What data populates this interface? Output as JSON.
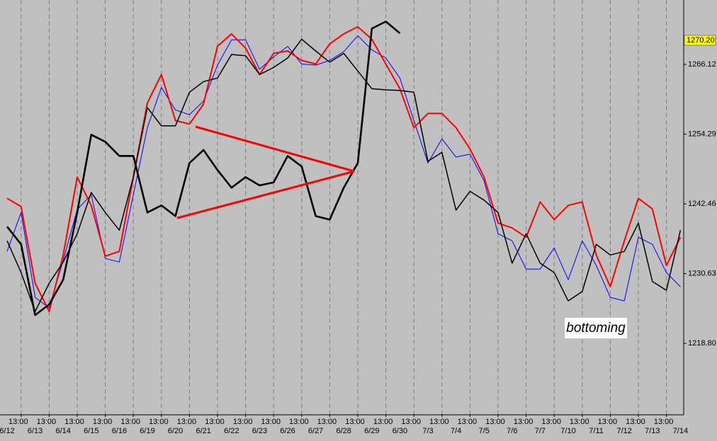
{
  "chart_data": {
    "type": "line",
    "x": [
      0,
      0.5,
      1,
      1.5,
      2,
      2.5,
      3,
      3.5,
      4,
      4.5,
      5,
      5.5,
      6,
      6.5,
      7,
      7.5,
      8,
      8.5,
      9,
      9.5,
      10,
      10.5,
      11,
      11.5,
      12,
      12.5,
      13,
      13.5,
      14,
      14.5,
      15,
      15.5,
      16,
      16.5,
      17,
      17.5,
      18,
      18.5,
      19,
      19.5,
      20,
      20.5,
      21,
      21.5,
      22,
      22.5,
      23,
      23.5,
      24
    ],
    "series": [
      {
        "color": "#0000ff",
        "width": 1,
        "values": [
          1234.4,
          1241.0,
          1226.6,
          1224.8,
          1232.9,
          1241.5,
          1244.0,
          1233.2,
          1232.6,
          1244.0,
          1255.4,
          1262.2,
          1258.4,
          1257.6,
          1259.9,
          1266.0,
          1270.3,
          1270.3,
          1265.3,
          1267.4,
          1269.2,
          1266.2,
          1266.0,
          1266.8,
          1268.3,
          1271.0,
          1268.6,
          1267.2,
          1263.8,
          1256.6,
          1249.4,
          1253.5,
          1250.4,
          1250.9,
          1246.4,
          1237.4,
          1236.2,
          1231.4,
          1231.4,
          1235.0,
          1229.6,
          1236.2,
          1232.0,
          1226.6,
          1226.0,
          1236.8,
          1235.6,
          1230.8,
          1228.4
        ]
      },
      {
        "color": "#ff0000",
        "width": 2,
        "values": [
          1243.4,
          1242.0,
          1229.0,
          1224.2,
          1233.8,
          1247.0,
          1242.2,
          1233.6,
          1234.4,
          1247.0,
          1259.6,
          1264.4,
          1256.6,
          1256.0,
          1259.4,
          1269.2,
          1271.3,
          1268.9,
          1264.4,
          1268.0,
          1268.4,
          1266.8,
          1266.2,
          1269.6,
          1271.3,
          1272.5,
          1270.4,
          1266.2,
          1262.0,
          1255.4,
          1257.8,
          1257.8,
          1255.4,
          1251.8,
          1247.0,
          1239.2,
          1238.4,
          1236.8,
          1242.8,
          1239.8,
          1242.2,
          1242.8,
          1233.8,
          1228.4,
          1236.2,
          1243.4,
          1241.6,
          1232.0,
          1236.8
        ]
      },
      {
        "color": "#000000",
        "width": 1.5,
        "values": [
          1236.2,
          1230.8,
          1224.2,
          1229.0,
          1232.6,
          1237.4,
          1244.4,
          1241.0,
          1238.0,
          1247.0,
          1258.8,
          1255.7,
          1255.7,
          1261.4,
          1263.2,
          1263.8,
          1267.8,
          1267.6,
          1264.4,
          1265.6,
          1267.2,
          1270.4,
          1268.4,
          1266.5,
          1268.0,
          1265.0,
          1262.0,
          1261.8,
          1261.7,
          1261.4,
          1249.7,
          1251.2,
          1241.4,
          1244.6,
          1243.1,
          1241.0,
          1232.4,
          1237.4,
          1232.4,
          1230.8,
          1226.0,
          1227.6,
          1235.6,
          1233.8,
          1234.4,
          1239.2,
          1229.3,
          1227.8,
          1238.0
        ]
      },
      {
        "color": "#000000",
        "width": 2.6,
        "values": [
          1238.6,
          1235.6,
          1223.6,
          1225.4,
          1229.6,
          1241.0,
          1254.2,
          1253.0,
          1250.6,
          1250.6,
          1241.0,
          1242.2,
          1240.4,
          1249.4,
          1251.6,
          1248.2,
          1245.2,
          1247.0,
          1245.6,
          1246.1,
          1250.6,
          1248.8,
          1240.4,
          1239.8,
          1245.2,
          1249.4,
          1272.2,
          1273.4,
          1271.4,
          null,
          null,
          null,
          null,
          null,
          null,
          null,
          null,
          null,
          null,
          null,
          null,
          null,
          null,
          null,
          null,
          null,
          null,
          null,
          null
        ]
      }
    ],
    "ylim": [
      1206.8,
      1277.05
    ],
    "yticks": [
      {
        "value": 1218.8,
        "label": "1218.80"
      },
      1230.63,
      1242.46,
      1254.29,
      1266.12
    ],
    "last_value_marker": {
      "value": 1270.2,
      "label": "1270.20",
      "color": "#ffff00"
    },
    "xlim": [
      -0.25,
      24.1
    ],
    "xticks": [
      {
        "value": 0,
        "label": "6/12"
      },
      {
        "value": 1,
        "label": "6/13"
      },
      {
        "value": 2,
        "label": "6/14"
      },
      {
        "value": 3,
        "label": "6/15"
      },
      {
        "value": 4,
        "label": "6/16"
      },
      {
        "value": 5,
        "label": "6/19"
      },
      {
        "value": 6,
        "label": "6/20"
      },
      {
        "value": 7,
        "label": "6/21"
      },
      {
        "value": 8,
        "label": "6/22"
      },
      {
        "value": 9,
        "label": "6/23"
      },
      {
        "value": 10,
        "label": "6/26"
      },
      {
        "value": 11,
        "label": "6/27"
      },
      {
        "value": 12,
        "label": "6/28"
      },
      {
        "value": 13,
        "label": "6/29"
      },
      {
        "value": 14,
        "label": "6/30"
      },
      {
        "value": 15,
        "label": "7/3"
      },
      {
        "value": 16,
        "label": "7/4"
      },
      {
        "value": 17,
        "label": "7/5"
      },
      {
        "value": 18,
        "label": "7/6"
      },
      {
        "value": 19,
        "label": "7/7"
      },
      {
        "value": 20,
        "label": "7/10"
      },
      {
        "value": 21,
        "label": "7/11"
      },
      {
        "value": 22,
        "label": "7/12"
      },
      {
        "value": 23,
        "label": "7/13"
      },
      {
        "value": 24,
        "label": "7/14"
      }
    ],
    "time_ticks": [
      {
        "value": 0.5,
        "label": "13:00"
      },
      {
        "value": 1.5,
        "label": "13:00"
      },
      {
        "value": 2.5,
        "label": "13:00"
      },
      {
        "value": 3.5,
        "label": "13:00"
      },
      {
        "value": 4.5,
        "label": "13:00"
      },
      {
        "value": 5.5,
        "label": "13:00"
      },
      {
        "value": 6.5,
        "label": "13:00"
      },
      {
        "value": 7.5,
        "label": "13:00"
      },
      {
        "value": 8.5,
        "label": "13:00"
      },
      {
        "value": 9.5,
        "label": "13:00"
      },
      {
        "value": 10.5,
        "label": "13:00"
      },
      {
        "value": 11.5,
        "label": "13:00"
      },
      {
        "value": 12.5,
        "label": "13:00"
      },
      {
        "value": 13.5,
        "label": "13:00"
      },
      {
        "value": 14.5,
        "label": "13:00"
      },
      {
        "value": 15.5,
        "label": "13:00"
      },
      {
        "value": 16.5,
        "label": "13:00"
      },
      {
        "value": 17.5,
        "label": "13:00"
      },
      {
        "value": 18.5,
        "label": "13:00"
      },
      {
        "value": 19.5,
        "label": "13:00"
      },
      {
        "value": 20.5,
        "label": "13:00"
      },
      {
        "value": 21.5,
        "label": "13:00"
      },
      {
        "value": 22.5,
        "label": "13:00"
      },
      {
        "value": 23.5,
        "label": "13:00"
      }
    ],
    "xgrid": true,
    "annotation": "bottoming"
  }
}
